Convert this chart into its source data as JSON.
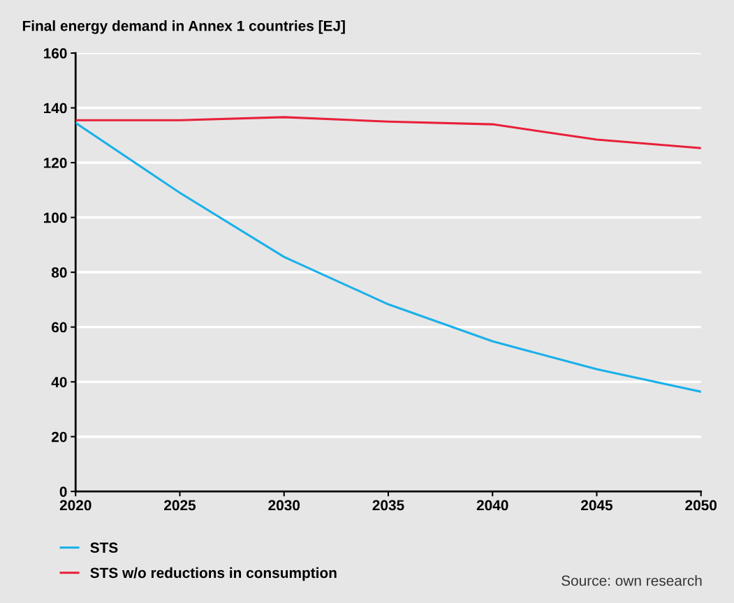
{
  "chart_data": {
    "type": "line",
    "ylabel": "Final energy demand in Annex 1 countries [EJ]",
    "x": [
      2020,
      2025,
      2030,
      2035,
      2040,
      2045,
      2050
    ],
    "series": [
      {
        "name": "STS",
        "color": "#1ab0ea",
        "values": [
          134.5,
          109,
          85.6,
          68.3,
          54.8,
          44.6,
          36.4
        ]
      },
      {
        "name": "STS w/o reductions in consumption",
        "color": "#e8203a",
        "values": [
          135.5,
          135.5,
          136.6,
          135,
          134,
          128.4,
          125.3
        ]
      }
    ],
    "xlim": [
      2020,
      2050
    ],
    "xticks": [
      2020,
      2025,
      2030,
      2035,
      2040,
      2045,
      2050
    ],
    "ylim": [
      0,
      160
    ],
    "yticks": [
      0,
      20,
      40,
      60,
      80,
      100,
      120,
      140,
      160
    ],
    "grid": "y",
    "legend": "bottom left",
    "marker": "none",
    "line_style": "solid",
    "annotations": [
      "Source: own research"
    ]
  }
}
